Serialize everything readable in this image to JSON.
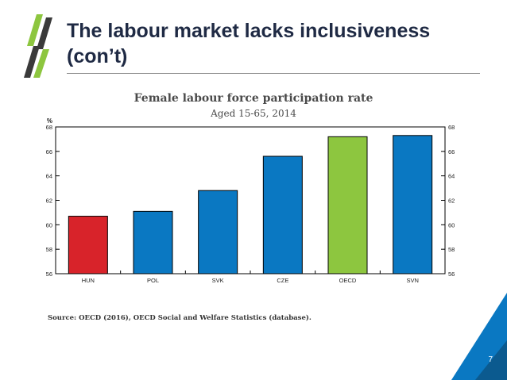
{
  "slide": {
    "title": "The labour market lacks inclusiveness (con’t)",
    "source": "Source: OECD (2016), OECD Social and Welfare Statistics (database).",
    "page_number": "7"
  },
  "colors": {
    "title": "#1f2a44",
    "bar_default": "#0a78c2",
    "bar_highlight_red": "#d8232a",
    "bar_highlight_green": "#8dc63f",
    "logo_green": "#8dc63f",
    "logo_dark": "#3a3a3a",
    "corner_blue": "#0a78c2",
    "corner_dark": "#0b5a8f"
  },
  "chart_data": {
    "type": "bar",
    "title": "Female labour force participation rate",
    "subtitle": "Aged 15-65, 2014",
    "ylabel": "%",
    "categories": [
      "HUN",
      "POL",
      "SVK",
      "CZE",
      "OECD",
      "SVN"
    ],
    "values": [
      60.7,
      61.1,
      62.8,
      65.6,
      67.2,
      67.3
    ],
    "bar_colors": [
      "#d8232a",
      "#0a78c2",
      "#0a78c2",
      "#0a78c2",
      "#8dc63f",
      "#0a78c2"
    ],
    "ylim": [
      56,
      68
    ],
    "yticks": [
      56,
      58,
      60,
      62,
      64,
      66,
      68
    ],
    "grid": false,
    "right_axis_mirrored": true
  }
}
